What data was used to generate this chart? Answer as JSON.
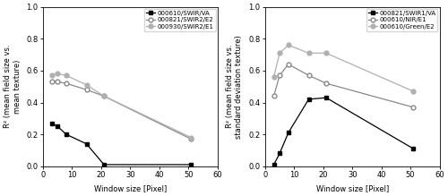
{
  "left": {
    "series": [
      {
        "label": "000610/SWIR/VA",
        "x": [
          3,
          5,
          8,
          15,
          21,
          51
        ],
        "y": [
          0.27,
          0.25,
          0.2,
          0.14,
          0.01,
          0.01
        ],
        "color": "#000000",
        "marker": "s",
        "marker_face": "#000000",
        "linestyle": "-"
      },
      {
        "label": "000821/SWIR2/E2",
        "x": [
          3,
          5,
          8,
          15,
          21,
          51
        ],
        "y": [
          0.53,
          0.53,
          0.52,
          0.48,
          0.44,
          0.17
        ],
        "color": "#888888",
        "marker": "o",
        "marker_face": "white",
        "linestyle": "-"
      },
      {
        "label": "000930/SWIR2/E1",
        "x": [
          3,
          5,
          8,
          15,
          21,
          51
        ],
        "y": [
          0.57,
          0.58,
          0.57,
          0.51,
          0.44,
          0.18
        ],
        "color": "#b0b0b0",
        "marker": "o",
        "marker_face": "#b0b0b0",
        "linestyle": "-"
      }
    ],
    "ylabel": "R² (mean field size vs.\nmean texture)",
    "xlabel": "Window size [Pixel]",
    "xlim": [
      0,
      60
    ],
    "ylim": [
      0.0,
      1.0
    ],
    "xticks": [
      0,
      10,
      20,
      30,
      40,
      50,
      60
    ],
    "yticks": [
      0.0,
      0.2,
      0.4,
      0.6,
      0.8,
      1.0
    ]
  },
  "right": {
    "series": [
      {
        "label": "000821/SWIR1/VA",
        "x": [
          3,
          5,
          8,
          15,
          21,
          51
        ],
        "y": [
          0.01,
          0.08,
          0.21,
          0.42,
          0.43,
          0.11
        ],
        "color": "#000000",
        "marker": "s",
        "marker_face": "#000000",
        "linestyle": "-"
      },
      {
        "label": "000610/NIR/E1",
        "x": [
          3,
          5,
          8,
          15,
          21,
          51
        ],
        "y": [
          0.44,
          0.57,
          0.64,
          0.57,
          0.52,
          0.37
        ],
        "color": "#888888",
        "marker": "o",
        "marker_face": "white",
        "linestyle": "-"
      },
      {
        "label": "000610/Green/E2",
        "x": [
          3,
          5,
          8,
          15,
          21,
          51
        ],
        "y": [
          0.56,
          0.71,
          0.76,
          0.71,
          0.71,
          0.47
        ],
        "color": "#b0b0b0",
        "marker": "o",
        "marker_face": "#b0b0b0",
        "linestyle": "-"
      }
    ],
    "ylabel": "R² (mean field size vs.\nstandard deviation texture)",
    "xlabel": "Window size [Pixel]",
    "xlim": [
      0,
      60
    ],
    "ylim": [
      0.0,
      1.0
    ],
    "xticks": [
      0,
      10,
      20,
      30,
      40,
      50,
      60
    ],
    "yticks": [
      0.0,
      0.2,
      0.4,
      0.6,
      0.8,
      1.0
    ]
  },
  "fig_width": 5.0,
  "fig_height": 2.19,
  "dpi": 100,
  "tick_fontsize": 6,
  "label_fontsize": 6,
  "legend_fontsize": 5,
  "marker_size": 3.5,
  "line_width": 0.9
}
